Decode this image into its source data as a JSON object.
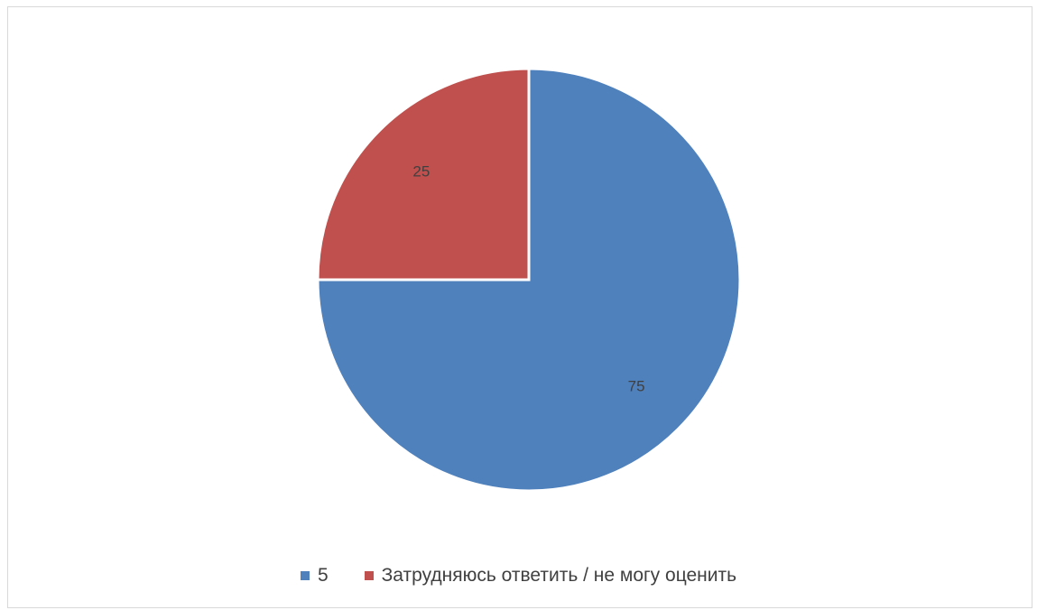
{
  "chart_data": {
    "type": "pie",
    "title": "",
    "categories": [
      "5",
      "Затрудняюсь ответить / не могу оценить"
    ],
    "values": [
      75,
      25
    ],
    "data_labels": [
      "75",
      "25"
    ],
    "colors": [
      "#4f81bd",
      "#c0504d"
    ],
    "start_angle": "12 o'clock",
    "direction": "clockwise",
    "legend": {
      "position": "bottom"
    }
  }
}
